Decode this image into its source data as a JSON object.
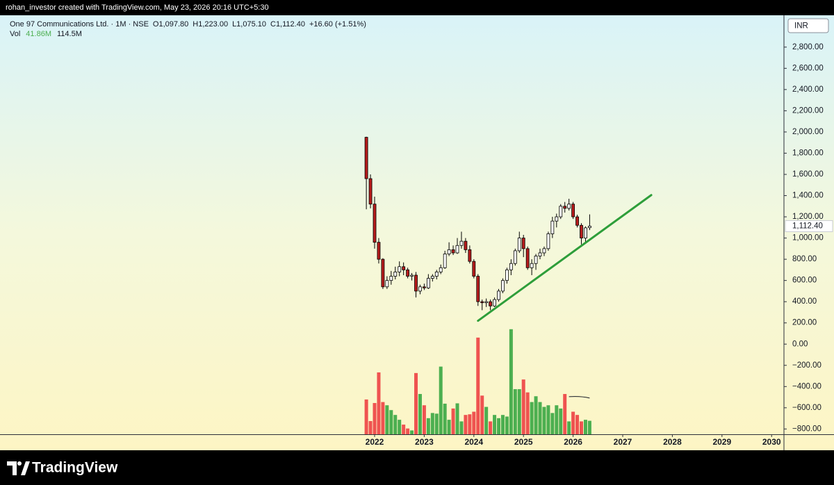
{
  "attribution": "rohan_investor created with TradingView.com, May 23, 2026 20:16 UTC+5:30",
  "brand": "TradingView",
  "chart_data": {
    "type": "candlestick",
    "title": "One 97 Communications Ltd. · 1M · NSE",
    "ohlc_labels": [
      "O1,097.80",
      "H1,223.00",
      "L1,075.10",
      "C1,112.40",
      "+16.60 (+1.51%)"
    ],
    "volume_title": "Vol",
    "volume_labels": [
      "41.86M",
      "114.5M"
    ],
    "currency": "INR",
    "last_price": {
      "value": 1112.4,
      "label": "1,112.40"
    },
    "x": [
      2021.8333,
      2021.9167,
      2022,
      2022.0833,
      2022.1667,
      2022.25,
      2022.3333,
      2022.4167,
      2022.5,
      2022.5833,
      2022.6667,
      2022.75,
      2022.8333,
      2022.9167,
      2023,
      2023.0833,
      2023.1667,
      2023.25,
      2023.3333,
      2023.4167,
      2023.5,
      2023.5833,
      2023.6667,
      2023.75,
      2023.8333,
      2023.9167,
      2024,
      2024.0833,
      2024.1667,
      2024.25,
      2024.3333,
      2024.4167,
      2024.5,
      2024.5833,
      2024.6667,
      2024.75,
      2024.8333,
      2024.9167,
      2025,
      2025.0833,
      2025.1667,
      2025.25,
      2025.3333,
      2025.4167,
      2025.5,
      2025.5833,
      2025.6667,
      2025.75,
      2025.8333,
      2025.9167,
      2026,
      2026.0833,
      2026.1667,
      2026.25,
      2026.3333
    ],
    "open": [
      1950,
      1560,
      1320,
      960,
      800,
      540,
      600,
      640,
      680,
      730,
      700,
      640,
      650,
      500,
      540,
      530,
      620,
      640,
      680,
      720,
      850,
      890,
      860,
      930,
      970,
      890,
      780,
      640,
      400,
      390,
      400,
      360,
      420,
      500,
      600,
      700,
      760,
      880,
      1000,
      900,
      720,
      760,
      830,
      860,
      900,
      1040,
      1160,
      1200,
      1300,
      1280,
      1320,
      1200,
      1120,
      1000,
      1097.8
    ],
    "high": [
      1955,
      1600,
      1390,
      1000,
      810,
      640,
      690,
      730,
      780,
      770,
      720,
      670,
      680,
      560,
      570,
      660,
      660,
      700,
      750,
      880,
      960,
      930,
      1000,
      1060,
      1000,
      930,
      800,
      660,
      420,
      430,
      420,
      440,
      520,
      620,
      720,
      800,
      900,
      1060,
      1030,
      920,
      800,
      850,
      900,
      920,
      1060,
      1200,
      1230,
      1320,
      1340,
      1370,
      1340,
      1220,
      1140,
      1110,
      1223
    ],
    "low": [
      1271,
      1280,
      900,
      760,
      520,
      520,
      560,
      610,
      640,
      650,
      620,
      600,
      440,
      470,
      510,
      520,
      590,
      610,
      660,
      710,
      830,
      840,
      850,
      900,
      860,
      760,
      620,
      360,
      320,
      350,
      320,
      350,
      400,
      480,
      570,
      650,
      740,
      860,
      820,
      700,
      650,
      700,
      800,
      830,
      880,
      1000,
      1100,
      1180,
      1240,
      1260,
      1180,
      1100,
      940,
      960,
      1075.1
    ],
    "close": [
      1560,
      1320,
      960,
      800,
      540,
      600,
      640,
      680,
      730,
      700,
      640,
      650,
      500,
      540,
      530,
      620,
      640,
      680,
      720,
      850,
      890,
      860,
      930,
      970,
      890,
      780,
      640,
      400,
      390,
      400,
      360,
      420,
      500,
      600,
      700,
      760,
      880,
      1000,
      900,
      720,
      760,
      830,
      860,
      900,
      1040,
      1160,
      1200,
      1300,
      1280,
      1320,
      1200,
      1120,
      1000,
      1095.8,
      1112.4
    ],
    "volume": [
      108,
      41,
      97,
      192,
      100,
      90,
      75,
      60,
      45,
      30,
      18,
      12,
      190,
      125,
      90,
      50,
      66,
      64,
      210,
      95,
      45,
      80,
      96,
      40,
      60,
      62,
      70,
      300,
      120,
      85,
      40,
      60,
      50,
      60,
      55,
      326,
      140,
      140,
      170,
      130,
      100,
      118,
      100,
      85,
      90,
      66,
      90,
      80,
      125,
      40,
      70,
      60,
      40,
      45,
      41.86
    ],
    "volume_ma": 114.5,
    "volume_lim": [
      0,
      1300
    ],
    "up_color": "#ffffff",
    "down_color": "#b71c1c",
    "wick_color": "#000000",
    "volume_up_color": "#4caf50",
    "volume_down_color": "#ef5350",
    "trendline": {
      "x": [
        2024.0833,
        2027.575
      ],
      "y": [
        220,
        1405
      ],
      "color": "#2e9e3a"
    },
    "xlim": [
      2014.451,
      2030.249
    ],
    "xticks": [
      2022,
      2023,
      2024,
      2025,
      2026,
      2027,
      2028,
      2029,
      2030
    ],
    "ylim": [
      -850,
      3100
    ],
    "yticks": [
      {
        "value": -800,
        "label": "−800.00"
      },
      {
        "value": -600,
        "label": "−600.00"
      },
      {
        "value": -400,
        "label": "−400.00"
      },
      {
        "value": -200,
        "label": "−200.00"
      },
      {
        "value": 0,
        "label": "0.00"
      },
      {
        "value": 200,
        "label": "200.00"
      },
      {
        "value": 400,
        "label": "400.00"
      },
      {
        "value": 600,
        "label": "600.00"
      },
      {
        "value": 800,
        "label": "800.00"
      },
      {
        "value": 1000,
        "label": "1,000.00"
      },
      {
        "value": 1200,
        "label": "1,200.00"
      },
      {
        "value": 1400,
        "label": "1,400.00"
      },
      {
        "value": 1600,
        "label": "1,600.00"
      },
      {
        "value": 1800,
        "label": "1,800.00"
      },
      {
        "value": 2000,
        "label": "2,000.00"
      },
      {
        "value": 2200,
        "label": "2,200.00"
      },
      {
        "value": 2400,
        "label": "2,400.00"
      },
      {
        "value": 2600,
        "label": "2,600.00"
      },
      {
        "value": 2800,
        "label": "2,800.00"
      }
    ],
    "grid": false
  }
}
